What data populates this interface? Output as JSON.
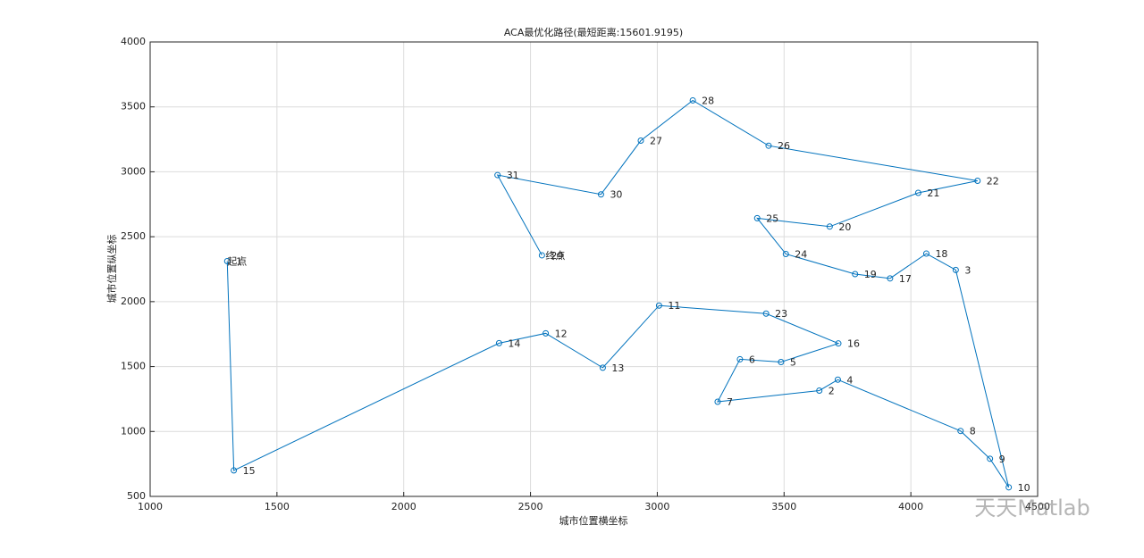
{
  "chart_data": {
    "type": "line",
    "title": "ACA最优化路径(最短距离:15601.9195)",
    "x_label": "城市位置横坐标",
    "y_label": "城市位置纵坐标",
    "series": [
      {
        "color": "#0072bd",
        "labels": [
          "1",
          "15",
          "14",
          "12",
          "13",
          "11",
          "23",
          "16",
          "5",
          "6",
          "7",
          "2",
          "4",
          "8",
          "9",
          "10",
          "3",
          "18",
          "17",
          "19",
          "24",
          "25",
          "20",
          "21",
          "22",
          "26",
          "28",
          "27",
          "30",
          "31",
          "29"
        ],
        "x": [
          1304,
          1330,
          2376,
          2560,
          2785,
          3007,
          3429,
          3714,
          3488,
          3326,
          3238,
          3639,
          3712,
          4196,
          4312,
          4386,
          4177,
          4061,
          3918,
          3780,
          3507,
          3394,
          3680,
          4029,
          4263,
          3439,
          3140,
          2935,
          2778,
          2370,
          2545
        ],
        "values": [
          2312,
          700,
          1680,
          1756,
          1491,
          1970,
          1908,
          1678,
          1535,
          1556,
          1229,
          1315,
          1399,
          1004,
          790,
          570,
          2244,
          2370,
          2179,
          2212,
          2367,
          2643,
          2578,
          2838,
          2931,
          3201,
          3550,
          3240,
          2826,
          2975,
          2357
        ]
      }
    ],
    "start_label": "起点",
    "end_label": "终点",
    "xlim": [
      1000,
      4500
    ],
    "xticks": [
      1000,
      1500,
      2000,
      2500,
      3000,
      3500,
      4000,
      4500
    ],
    "ylim": [
      500,
      4000
    ],
    "yticks": [
      500,
      1000,
      1500,
      2000,
      2500,
      3000,
      3500,
      4000
    ],
    "grid": true,
    "watermark": "天天Matlab"
  }
}
